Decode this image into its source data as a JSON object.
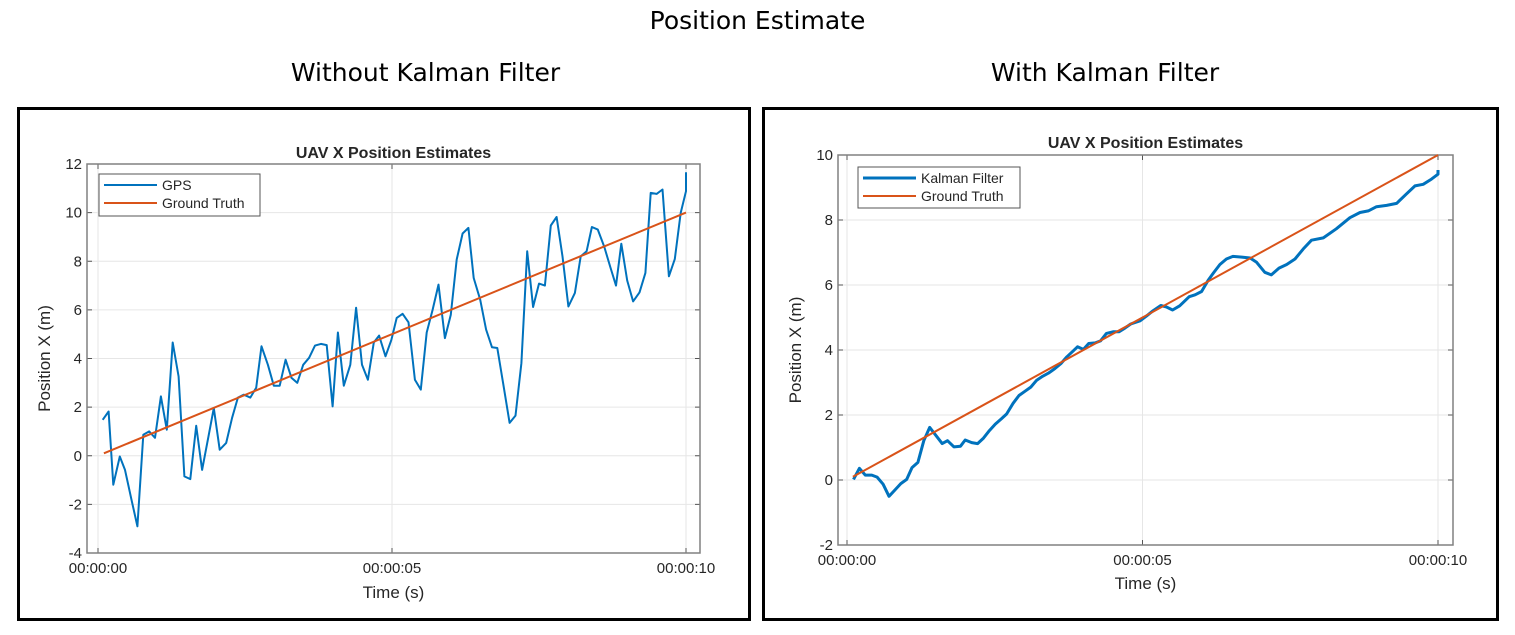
{
  "title": "Position Estimate",
  "subtitles": [
    "Without Kalman Filter",
    "With Kalman Filter"
  ],
  "colors": {
    "estimate": "#0072BD",
    "ground_truth": "#D95319",
    "grid": "#E6E6E6",
    "axis": "#808080"
  },
  "chart_data": [
    {
      "type": "line",
      "title": "UAV X Position Estimates",
      "xlabel": "Time (s)",
      "ylabel": "Position X (m)",
      "xlim": [
        0,
        10
      ],
      "ylim": [
        -4,
        12
      ],
      "xticks": [
        0,
        5,
        10
      ],
      "xtick_labels": [
        "00:00:00",
        "00:00:05",
        "00:00:10"
      ],
      "yticks": [
        -4,
        -2,
        0,
        2,
        4,
        6,
        8,
        10,
        12
      ],
      "ytick_labels": [
        "-4",
        "-2",
        "0",
        "2",
        "4",
        "6",
        "8",
        "10",
        "12"
      ],
      "grid": true,
      "legend_position": "top-left",
      "series": [
        {
          "name": "GPS",
          "color": "#0072BD",
          "x": [
            0.08,
            0.18,
            0.26,
            0.37,
            0.46,
            0.57,
            0.67,
            0.77,
            0.87,
            0.97,
            1.07,
            1.17,
            1.27,
            1.37,
            1.47,
            1.57,
            1.67,
            1.77,
            1.88,
            1.97,
            2.07,
            2.18,
            2.28,
            2.38,
            2.48,
            2.59,
            2.69,
            2.78,
            2.89,
            2.99,
            3.09,
            3.19,
            3.29,
            3.39,
            3.49,
            3.59,
            3.69,
            3.79,
            3.89,
            3.99,
            4.08,
            4.18,
            4.29,
            4.39,
            4.49,
            4.59,
            4.69,
            4.78,
            4.89,
            4.99,
            5.08,
            5.18,
            5.28,
            5.39,
            5.49,
            5.59,
            5.69,
            5.79,
            5.9,
            6.0,
            6.1,
            6.2,
            6.3,
            6.39,
            6.5,
            6.6,
            6.7,
            6.79,
            6.89,
            7.0,
            7.1,
            7.2,
            7.3,
            7.4,
            7.5,
            7.6,
            7.7,
            7.8,
            7.9,
            8.0,
            8.11,
            8.21,
            8.31,
            8.4,
            8.5,
            8.61,
            8.71,
            8.81,
            8.9,
            9.0,
            9.1,
            9.21,
            9.31,
            9.4,
            9.5,
            9.6,
            9.71,
            9.81,
            9.91,
            10.0,
            10.0
          ],
          "y": [
            1.48,
            1.82,
            -1.19,
            -0.03,
            -0.58,
            -1.81,
            -2.9,
            0.86,
            1.0,
            0.74,
            2.44,
            1.07,
            4.66,
            3.26,
            -0.85,
            -0.96,
            1.23,
            -0.58,
            0.8,
            1.96,
            0.25,
            0.53,
            1.56,
            2.39,
            2.51,
            2.39,
            2.8,
            4.5,
            3.74,
            2.88,
            2.88,
            3.95,
            3.2,
            3.0,
            3.74,
            4.03,
            4.53,
            4.6,
            4.55,
            2.03,
            5.07,
            2.88,
            3.74,
            6.09,
            3.74,
            3.13,
            4.66,
            4.94,
            4.09,
            4.77,
            5.67,
            5.84,
            5.49,
            3.13,
            2.72,
            5.07,
            6.0,
            7.04,
            4.84,
            5.8,
            8.07,
            9.14,
            9.37,
            7.31,
            6.42,
            5.19,
            4.46,
            4.43,
            2.99,
            1.35,
            1.65,
            3.81,
            8.41,
            6.12,
            7.08,
            7.0,
            9.47,
            9.82,
            8.2,
            6.14,
            6.7,
            8.2,
            8.41,
            9.41,
            9.3,
            8.59,
            7.79,
            7.0,
            8.72,
            7.21,
            6.35,
            6.72,
            7.52,
            10.81,
            10.77,
            10.95,
            7.38,
            8.09,
            9.99,
            10.88,
            11.66
          ]
        },
        {
          "name": "Ground Truth",
          "color": "#D95319",
          "x": [
            0.1,
            10.0
          ],
          "y": [
            0.1,
            10.0
          ]
        }
      ]
    },
    {
      "type": "line",
      "title": "UAV X Position Estimates",
      "xlabel": "Time (s)",
      "ylabel": "Position X (m)",
      "xlim": [
        0,
        10
      ],
      "ylim": [
        -2,
        10
      ],
      "xticks": [
        0,
        5,
        10
      ],
      "xtick_labels": [
        "00:00:00",
        "00:00:05",
        "00:00:10"
      ],
      "yticks": [
        -2,
        0,
        2,
        4,
        6,
        8,
        10
      ],
      "ytick_labels": [
        "-2",
        "0",
        "2",
        "4",
        "6",
        "8",
        "10"
      ],
      "grid": true,
      "legend_position": "top-left",
      "series": [
        {
          "name": "Kalman Filter",
          "color": "#0072BD",
          "x": [
            0.11,
            0.21,
            0.31,
            0.42,
            0.51,
            0.61,
            0.71,
            0.82,
            0.91,
            1.01,
            1.1,
            1.2,
            1.3,
            1.4,
            1.51,
            1.61,
            1.7,
            1.81,
            1.92,
            2.0,
            2.11,
            2.21,
            2.31,
            2.41,
            2.51,
            2.61,
            2.7,
            2.81,
            2.91,
            3.01,
            3.11,
            3.21,
            3.31,
            3.41,
            3.52,
            3.62,
            3.72,
            3.82,
            3.9,
            4.0,
            4.09,
            4.2,
            4.29,
            4.39,
            4.5,
            4.6,
            4.7,
            4.8,
            4.96,
            5.07,
            5.18,
            5.31,
            5.41,
            5.51,
            5.63,
            5.79,
            5.89,
            6.0,
            6.11,
            6.2,
            6.31,
            6.42,
            6.53,
            6.68,
            6.82,
            6.93,
            7.07,
            7.18,
            7.31,
            7.44,
            7.58,
            7.72,
            7.86,
            8.06,
            8.28,
            8.51,
            8.68,
            8.82,
            8.96,
            9.13,
            9.3,
            9.47,
            9.61,
            9.75,
            9.89,
            10.0,
            10.0
          ],
          "y": [
            0.02,
            0.36,
            0.15,
            0.15,
            0.09,
            -0.13,
            -0.5,
            -0.29,
            -0.11,
            0.02,
            0.38,
            0.54,
            1.21,
            1.62,
            1.36,
            1.12,
            1.21,
            1.02,
            1.04,
            1.23,
            1.15,
            1.12,
            1.29,
            1.52,
            1.72,
            1.88,
            2.03,
            2.36,
            2.6,
            2.73,
            2.86,
            3.07,
            3.19,
            3.29,
            3.43,
            3.58,
            3.79,
            3.96,
            4.1,
            4.02,
            4.2,
            4.22,
            4.28,
            4.51,
            4.56,
            4.56,
            4.67,
            4.8,
            4.9,
            5.05,
            5.21,
            5.37,
            5.32,
            5.23,
            5.36,
            5.64,
            5.7,
            5.8,
            6.14,
            6.37,
            6.63,
            6.8,
            6.88,
            6.86,
            6.83,
            6.7,
            6.39,
            6.31,
            6.52,
            6.63,
            6.8,
            7.11,
            7.38,
            7.45,
            7.73,
            8.07,
            8.23,
            8.28,
            8.41,
            8.45,
            8.51,
            8.81,
            9.05,
            9.1,
            9.26,
            9.41,
            9.54
          ]
        },
        {
          "name": "Ground Truth",
          "color": "#D95319",
          "x": [
            0.1,
            10.0
          ],
          "y": [
            0.1,
            10.0
          ]
        }
      ]
    }
  ]
}
